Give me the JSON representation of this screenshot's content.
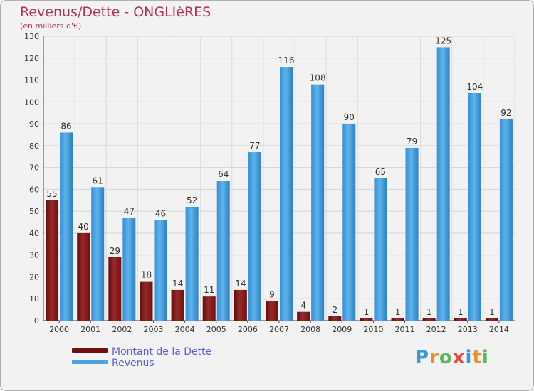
{
  "title": "Revenus/Dette - ONGLIèRES",
  "subtitle": "(en milliers d'€)",
  "legend": {
    "debt_label": "Montant de la Dette",
    "revenue_label": "Revenus"
  },
  "logo": {
    "letters": [
      "P",
      "r",
      "o",
      "x",
      "i",
      "t",
      "i"
    ],
    "colors": [
      "#3a9ad9",
      "#f28c28",
      "#5cb85c",
      "#e94b3c",
      "#3a9ad9",
      "#f28c28",
      "#5cb85c"
    ]
  },
  "colors": {
    "debt": "#8b1a1a",
    "revenue": "#4aa3e0",
    "title": "#b5305d",
    "legend_text": "#5a5ae0"
  },
  "chart_data": {
    "type": "bar",
    "categories": [
      "2000",
      "2001",
      "2002",
      "2003",
      "2004",
      "2005",
      "2006",
      "2007",
      "2008",
      "2009",
      "2010",
      "2011",
      "2012",
      "2013",
      "2014"
    ],
    "series": [
      {
        "name": "Montant de la Dette",
        "values": [
          55,
          40,
          29,
          18,
          14,
          11,
          14,
          9,
          4,
          2,
          1,
          1,
          1,
          1,
          1
        ]
      },
      {
        "name": "Revenus",
        "values": [
          86,
          61,
          47,
          46,
          52,
          64,
          77,
          116,
          108,
          90,
          65,
          79,
          125,
          104,
          92
        ]
      }
    ],
    "title": "Revenus/Dette - ONGLIèRES",
    "ylabel": "(en milliers d'€)",
    "ylim": [
      0,
      130
    ],
    "yticks": [
      0,
      10,
      20,
      30,
      40,
      50,
      60,
      70,
      80,
      90,
      100,
      110,
      120,
      130
    ],
    "grid": true,
    "legend": "bottom-left"
  }
}
